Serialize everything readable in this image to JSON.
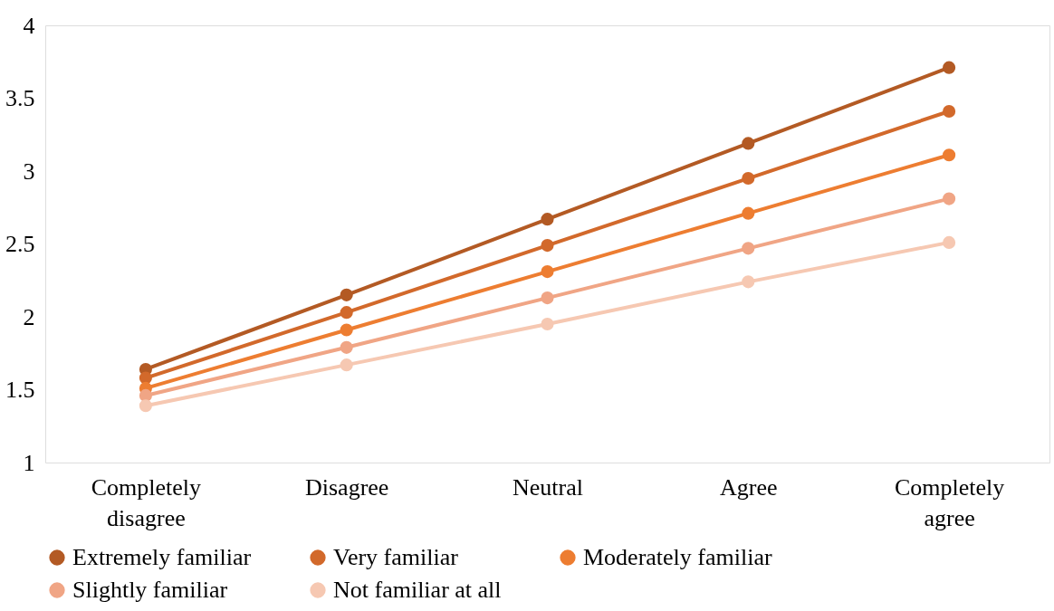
{
  "chart_data": {
    "type": "line",
    "categories": [
      "Completely disagree",
      "Disagree",
      "Neutral",
      "Agree",
      "Completely agree"
    ],
    "series": [
      {
        "name": "Extremely familiar",
        "color": "#b35a24",
        "values": [
          1.64,
          2.15,
          2.67,
          3.19,
          3.71
        ]
      },
      {
        "name": "Very familiar",
        "color": "#d2692b",
        "values": [
          1.58,
          2.03,
          2.49,
          2.95,
          3.41
        ]
      },
      {
        "name": "Moderately familiar",
        "color": "#ed7d31",
        "values": [
          1.51,
          1.91,
          2.31,
          2.71,
          3.11
        ]
      },
      {
        "name": "Slightly familiar",
        "color": "#f0a585",
        "values": [
          1.46,
          1.79,
          2.13,
          2.47,
          2.81
        ]
      },
      {
        "name": "Not familiar at all",
        "color": "#f6c8b2",
        "values": [
          1.39,
          1.67,
          1.95,
          2.24,
          2.51
        ]
      }
    ],
    "ylim": [
      1,
      4
    ],
    "yticks": [
      1,
      1.5,
      2,
      2.5,
      3,
      3.5,
      4
    ],
    "grid": false,
    "legend": "bottom",
    "marker": "circle",
    "line_style": "solid"
  }
}
